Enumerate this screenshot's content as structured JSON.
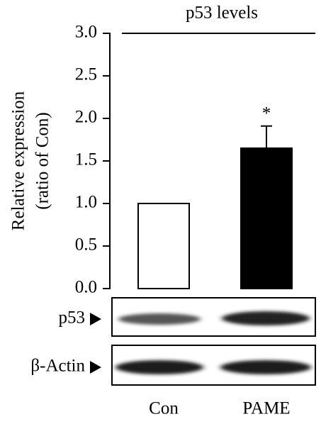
{
  "chart_data": {
    "type": "bar",
    "title": "p53 levels",
    "ylabel": [
      "Relative expression",
      "(ratio of Con)"
    ],
    "categories": [
      "Con",
      "PAME"
    ],
    "values": [
      1.0,
      1.65
    ],
    "errors": [
      null,
      0.26
    ],
    "colors": [
      "#ffffff",
      "#000000"
    ],
    "value_annotations": [
      null,
      "*"
    ],
    "ylim": [
      0,
      3
    ],
    "yticks": [
      {
        "value": 0,
        "label": "0.0"
      },
      {
        "value": 0.5,
        "label": "0.5"
      },
      {
        "value": 1,
        "label": "1.0"
      },
      {
        "value": 1.5,
        "label": "1.5"
      },
      {
        "value": 2,
        "label": "2.0"
      },
      {
        "value": 2.5,
        "label": "2.5"
      },
      {
        "value": 3,
        "label": "3.0"
      }
    ],
    "blot_labels": [
      "p53",
      "β-Actin"
    ]
  }
}
